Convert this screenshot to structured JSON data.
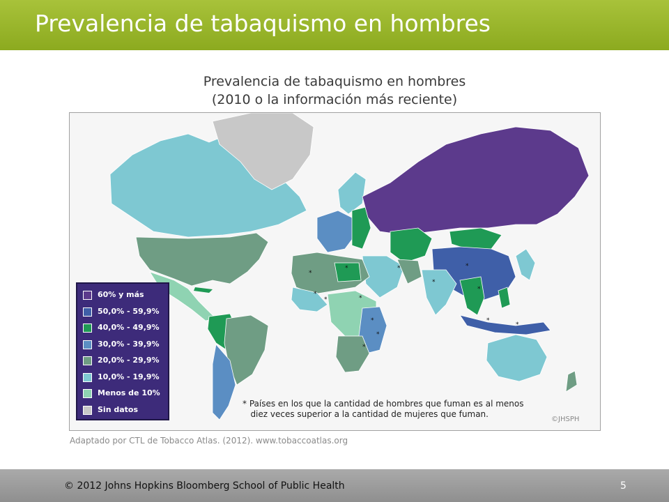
{
  "header": {
    "title": "Prevalencia de tabaquismo en hombres"
  },
  "map": {
    "title_line1": "Prevalencia de tabaquismo en hombres",
    "title_line2": "(2010 o la información más reciente)",
    "legend": [
      {
        "label": "60% y más",
        "color": "#5c3a8c"
      },
      {
        "label": "50,0% - 59,9%",
        "color": "#3f5fa8"
      },
      {
        "label": "40,0% - 49,9%",
        "color": "#1f9a55"
      },
      {
        "label": "30,0% - 39,9%",
        "color": "#5b8ec3"
      },
      {
        "label": "20,0% - 29,9%",
        "color": "#6f9d84"
      },
      {
        "label": "10,0% - 19,9%",
        "color": "#7ec8d2"
      },
      {
        "label": "Menos de 10%",
        "color": "#8fd3b2"
      },
      {
        "label": "Sin datos",
        "color": "#c8c8c8"
      }
    ],
    "footnote": "* Países en los que la cantidad de hombres que fuman es al menos\n   diez veces superior a la cantidad de mujeres que fuman.",
    "credit": "©JHSPH",
    "source": "Adaptado por CTL de Tobacco Atlas. (2012). www.tobaccoatlas.org"
  },
  "footer": {
    "copyright": "© 2012  Johns Hopkins Bloomberg School of Public Health",
    "page_number": "5"
  }
}
